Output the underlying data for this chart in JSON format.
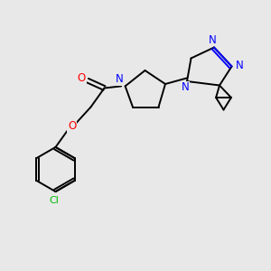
{
  "background_color": "#e8e8e8",
  "bond_color": "#000000",
  "nitrogen_color": "#0000ff",
  "oxygen_color": "#ff0000",
  "chlorine_color": "#00bb00",
  "figsize": [
    3.0,
    3.0
  ],
  "dpi": 100,
  "xlim": [
    0,
    10
  ],
  "ylim": [
    0,
    10
  ]
}
